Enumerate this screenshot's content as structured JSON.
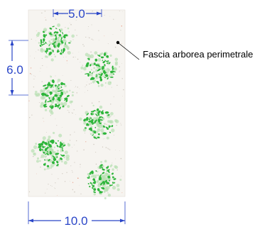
{
  "diagram": {
    "type": "planting-plan",
    "dimensions": {
      "top_spacing": "5.0",
      "left_spacing": "6.0",
      "bottom_width": "10.0"
    },
    "callout": {
      "label": "Fascia arborea perimetrale"
    },
    "trees": {
      "count": 6
    },
    "colors": {
      "dimension": "#2a46c8",
      "canopy_dark": "#2db53a",
      "canopy_light": "#b8e0b2",
      "strip_fill": "#f6f4f0",
      "leader": "#000000"
    }
  }
}
